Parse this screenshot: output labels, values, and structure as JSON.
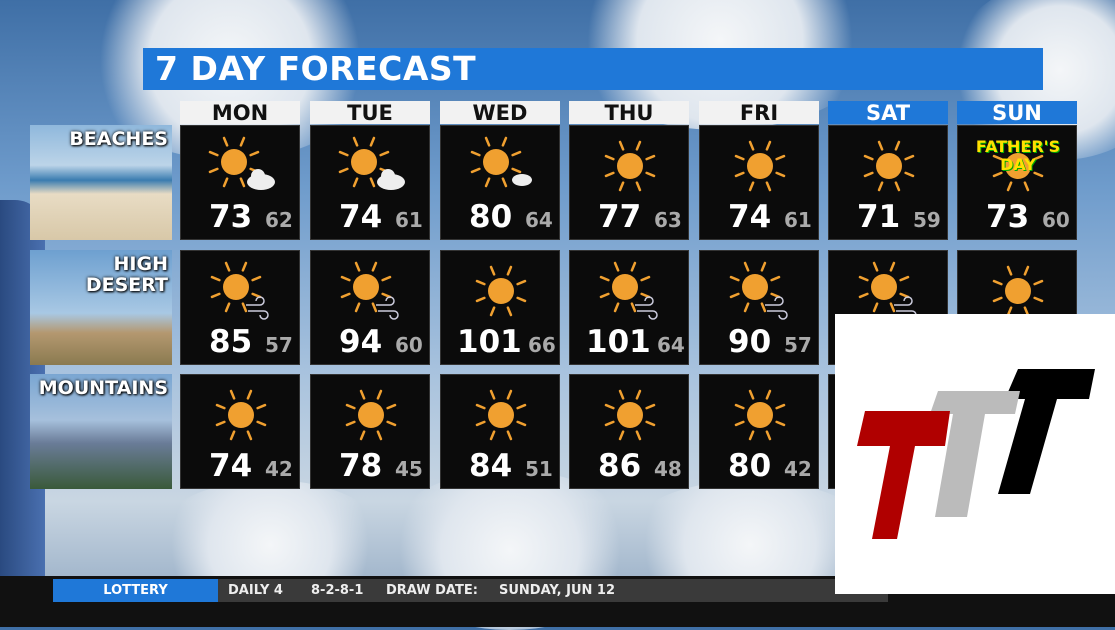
{
  "title": "7 DAY FORECAST",
  "days": [
    {
      "label": "MON",
      "weekend": false
    },
    {
      "label": "TUE",
      "weekend": false
    },
    {
      "label": "WED",
      "weekend": false
    },
    {
      "label": "THU",
      "weekend": false
    },
    {
      "label": "FRI",
      "weekend": false
    },
    {
      "label": "SAT",
      "weekend": true
    },
    {
      "label": "SUN",
      "weekend": true
    }
  ],
  "regions": [
    {
      "label": "BEACHES",
      "cells": [
        {
          "icon": "sun-cloud-icon",
          "hi": "73",
          "lo": "62"
        },
        {
          "icon": "sun-cloud-icon",
          "hi": "74",
          "lo": "61"
        },
        {
          "icon": "sun-small-cloud-icon",
          "hi": "80",
          "lo": "64"
        },
        {
          "icon": "sun-icon",
          "hi": "77",
          "lo": "63"
        },
        {
          "icon": "sun-icon",
          "hi": "74",
          "lo": "61"
        },
        {
          "icon": "sun-icon",
          "hi": "71",
          "lo": "59"
        },
        {
          "icon": "sun-icon",
          "hi": "73",
          "lo": "60",
          "badge": "FATHER'S DAY"
        }
      ]
    },
    {
      "label": "HIGH DESERT",
      "cells": [
        {
          "icon": "sun-wind-icon",
          "hi": "85",
          "lo": "57"
        },
        {
          "icon": "sun-wind-icon",
          "hi": "94",
          "lo": "60"
        },
        {
          "icon": "sun-icon",
          "hi": "101",
          "lo": "66"
        },
        {
          "icon": "sun-wind-icon",
          "hi": "101",
          "lo": "64"
        },
        {
          "icon": "sun-wind-icon",
          "hi": "90",
          "lo": "57"
        },
        {
          "icon": "sun-wind-icon",
          "hi": "",
          "lo": ""
        },
        {
          "icon": "sun-icon",
          "hi": "",
          "lo": ""
        }
      ]
    },
    {
      "label": "MOUNTAINS",
      "cells": [
        {
          "icon": "sun-icon",
          "hi": "74",
          "lo": "42"
        },
        {
          "icon": "sun-icon",
          "hi": "78",
          "lo": "45"
        },
        {
          "icon": "sun-icon",
          "hi": "84",
          "lo": "51"
        },
        {
          "icon": "sun-icon",
          "hi": "86",
          "lo": "48"
        },
        {
          "icon": "sun-icon",
          "hi": "80",
          "lo": "42"
        },
        {
          "icon": "sun-icon",
          "hi": "",
          "lo": ""
        },
        {
          "icon": "sun-icon",
          "hi": "",
          "lo": ""
        }
      ]
    }
  ],
  "ticker": {
    "category": "LOTTERY",
    "game": "DAILY 4",
    "numbers": "8-2-8-1",
    "draw_label": "DRAW DATE:",
    "draw_date": "SUNDAY, JUN 12"
  },
  "colors": {
    "accent": "#1f78d8",
    "sun": "#f0a030",
    "logo_red": "#b00000",
    "logo_gray": "#bbbbbb",
    "logo_black": "#000000"
  }
}
